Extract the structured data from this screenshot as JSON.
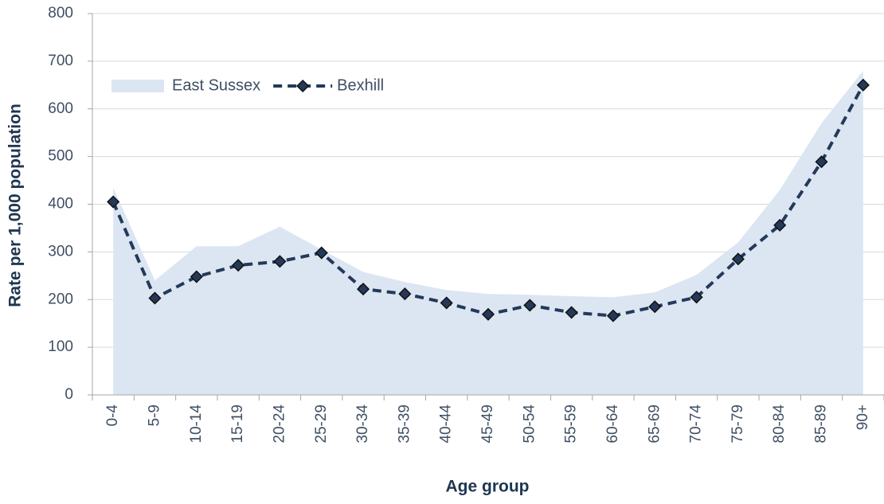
{
  "chart_data": {
    "type": "line",
    "xlabel": "Age group",
    "ylabel": "Rate per 1,000 population",
    "categories": [
      "0-4",
      "5-9",
      "10-14",
      "15-19",
      "20-24",
      "25-29",
      "30-34",
      "35-39",
      "40-44",
      "45-49",
      "50-54",
      "55-59",
      "60-64",
      "65-69",
      "70-74",
      "75-79",
      "80-84",
      "85-89",
      "90+"
    ],
    "series": [
      {
        "name": "East Sussex",
        "style": "area",
        "color": "#dce6f2",
        "values": [
          435,
          240,
          312,
          312,
          353,
          305,
          258,
          237,
          220,
          212,
          210,
          207,
          205,
          215,
          252,
          320,
          430,
          570,
          680
        ]
      },
      {
        "name": "Bexhill",
        "style": "dashed-line",
        "color": "#24395a",
        "values": [
          405,
          203,
          248,
          272,
          280,
          298,
          222,
          212,
          193,
          169,
          188,
          173,
          166,
          185,
          205,
          285,
          356,
          489,
          650
        ]
      }
    ],
    "ylim": [
      0,
      800
    ],
    "yticks": [
      0,
      100,
      200,
      300,
      400,
      500,
      600,
      700,
      800
    ],
    "grid": true
  }
}
